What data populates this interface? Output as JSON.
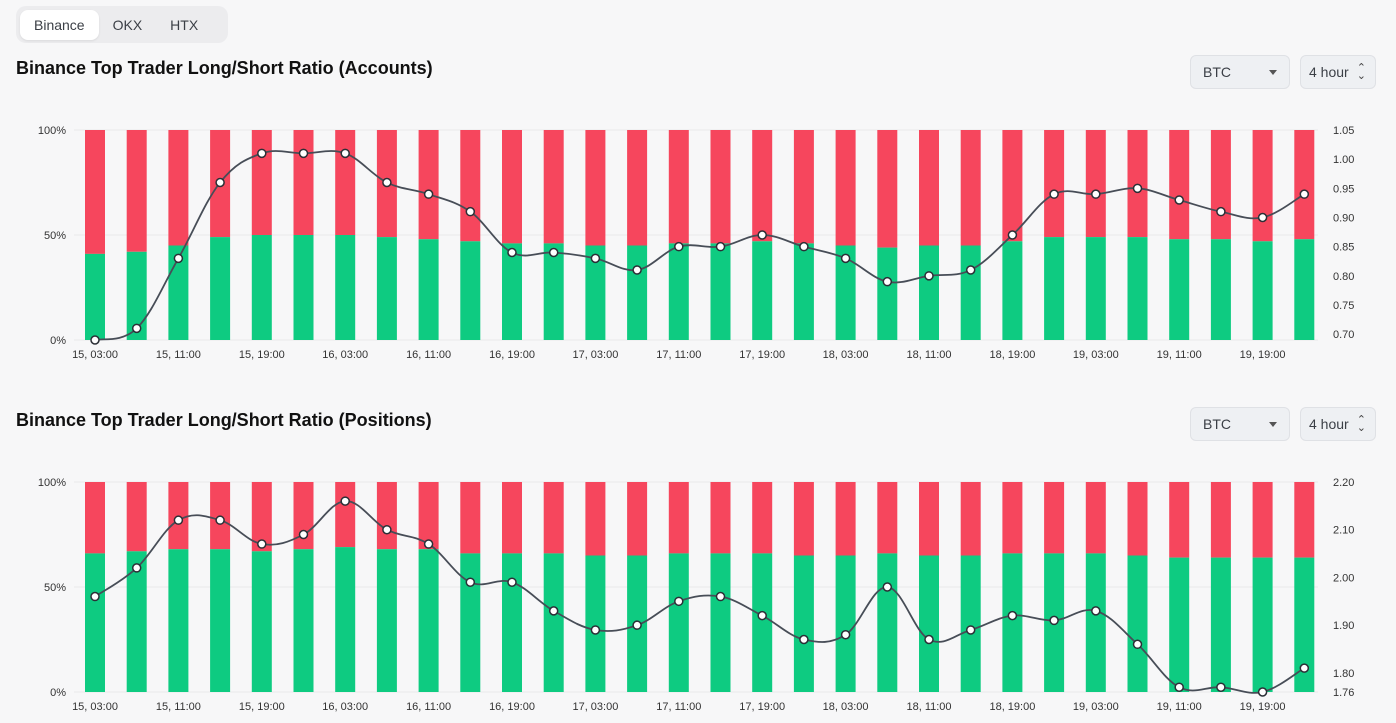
{
  "tabs": {
    "items": [
      "Binance",
      "OKX",
      "HTX"
    ],
    "active": 0
  },
  "colors": {
    "long": "#0ecb81",
    "short": "#f6465d",
    "line": "#474d57",
    "point_fill": "#ffffff"
  },
  "x_labels": [
    "15, 03:00",
    "15, 11:00",
    "15, 19:00",
    "16, 03:00",
    "16, 11:00",
    "16, 19:00",
    "17, 03:00",
    "17, 11:00",
    "17, 19:00",
    "18, 03:00",
    "18, 11:00",
    "18, 19:00",
    "19, 03:00",
    "19, 11:00",
    "19, 19:00"
  ],
  "charts": [
    {
      "title": "Binance Top Trader Long/Short Ratio (Accounts)",
      "symbol": "BTC",
      "interval": "4 hour"
    },
    {
      "title": "Binance Top Trader Long/Short Ratio (Positions)",
      "symbol": "BTC",
      "interval": "4 hour"
    }
  ],
  "chart_data": [
    {
      "type": "bar",
      "left_axis": {
        "ticks": [
          "100%",
          "50%",
          "0%"
        ],
        "range": [
          0,
          100
        ]
      },
      "right_axis": {
        "ticks": [
          "1.05",
          "1.00",
          "0.95",
          "0.90",
          "0.85",
          "0.80",
          "0.75",
          "0.70"
        ],
        "range": [
          0.69,
          1.05
        ]
      },
      "x": [
        "15, 03:00",
        "15, 07:00",
        "15, 11:00",
        "15, 15:00",
        "15, 19:00",
        "15, 23:00",
        "16, 03:00",
        "16, 07:00",
        "16, 11:00",
        "16, 15:00",
        "16, 19:00",
        "16, 23:00",
        "17, 03:00",
        "17, 07:00",
        "17, 11:00",
        "17, 15:00",
        "17, 19:00",
        "17, 23:00",
        "18, 03:00",
        "18, 07:00",
        "18, 11:00",
        "18, 15:00",
        "18, 19:00",
        "18, 23:00",
        "19, 03:00",
        "19, 07:00",
        "19, 11:00",
        "19, 15:00",
        "19, 19:00",
        "19, 23:00"
      ],
      "series": [
        {
          "values": [
            41,
            42,
            45,
            49,
            50,
            50,
            50,
            49,
            48,
            47,
            46,
            46,
            45,
            45,
            46,
            46,
            47,
            46,
            45,
            44,
            45,
            45,
            47,
            49,
            49,
            49,
            48,
            48,
            47,
            48
          ]
        },
        {
          "values": [
            0.69,
            0.71,
            0.83,
            0.96,
            1.01,
            1.01,
            1.01,
            0.96,
            0.94,
            0.91,
            0.84,
            0.84,
            0.83,
            0.81,
            0.85,
            0.85,
            0.87,
            0.85,
            0.83,
            0.79,
            0.8,
            0.81,
            0.87,
            0.94,
            0.94,
            0.95,
            0.93,
            0.91,
            0.9,
            0.94
          ]
        }
      ]
    },
    {
      "type": "bar",
      "left_axis": {
        "ticks": [
          "100%",
          "50%",
          "0%"
        ],
        "range": [
          0,
          100
        ]
      },
      "right_axis": {
        "ticks": [
          "2.20",
          "2.10",
          "2.00",
          "1.90",
          "1.80",
          "1.76"
        ],
        "range": [
          1.76,
          2.2
        ]
      },
      "x": [
        "15, 03:00",
        "15, 07:00",
        "15, 11:00",
        "15, 15:00",
        "15, 19:00",
        "15, 23:00",
        "16, 03:00",
        "16, 07:00",
        "16, 11:00",
        "16, 15:00",
        "16, 19:00",
        "16, 23:00",
        "17, 03:00",
        "17, 07:00",
        "17, 11:00",
        "17, 15:00",
        "17, 19:00",
        "17, 23:00",
        "18, 03:00",
        "18, 07:00",
        "18, 11:00",
        "18, 15:00",
        "18, 19:00",
        "18, 23:00",
        "19, 03:00",
        "19, 07:00",
        "19, 11:00",
        "19, 15:00",
        "19, 19:00",
        "19, 23:00"
      ],
      "series": [
        {
          "values": [
            66,
            67,
            68,
            68,
            67,
            68,
            69,
            68,
            68,
            66,
            66,
            66,
            65,
            65,
            66,
            66,
            66,
            65,
            65,
            66,
            65,
            65,
            66,
            66,
            66,
            65,
            64,
            64,
            64,
            64
          ]
        },
        {
          "values": [
            1.96,
            2.02,
            2.12,
            2.12,
            2.07,
            2.09,
            2.16,
            2.1,
            2.07,
            1.99,
            1.99,
            1.93,
            1.89,
            1.9,
            1.95,
            1.96,
            1.92,
            1.87,
            1.88,
            1.98,
            1.87,
            1.89,
            1.92,
            1.91,
            1.93,
            1.86,
            1.77,
            1.77,
            1.76,
            1.81
          ]
        }
      ]
    }
  ]
}
